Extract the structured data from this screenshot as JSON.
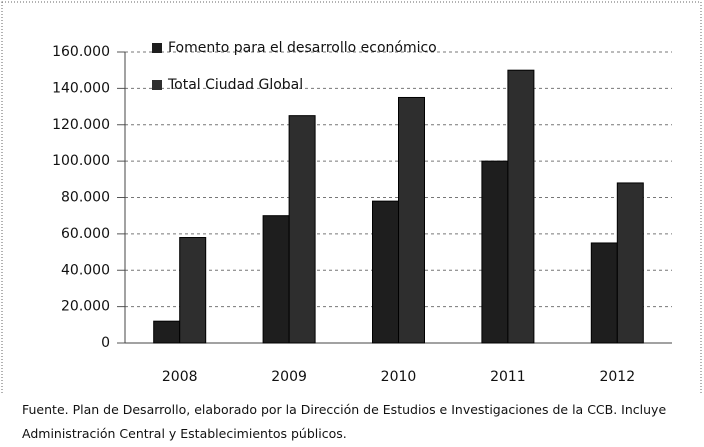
{
  "chart_data": {
    "type": "bar",
    "categories": [
      "2008",
      "2009",
      "2010",
      "2011",
      "2012"
    ],
    "series": [
      {
        "name": "Fomento para el desarrollo económico",
        "color": "#1e1e1e",
        "values": [
          12000,
          70000,
          78000,
          100000,
          55000
        ]
      },
      {
        "name": "Total Ciudad Global",
        "color": "#2e2e2e",
        "values": [
          58000,
          125000,
          135000,
          150000,
          88000
        ]
      }
    ],
    "ylim": [
      0,
      160000
    ],
    "yticks": [
      0,
      {
        "value": 20000,
        "label": "20.000"
      },
      {
        "value": 40000,
        "label": "40.000"
      },
      {
        "value": 60000,
        "label": "60.000"
      },
      {
        "value": 80000,
        "label": "80.000"
      },
      {
        "value": 100000,
        "label": "100.000"
      },
      {
        "value": 120000,
        "label": "120.000"
      },
      {
        "value": 140000,
        "label": "140.000"
      },
      {
        "value": 160000,
        "label": "160.000"
      }
    ],
    "grid": true,
    "legend": "top-left",
    "note": "Fuente. Plan de Desarrollo, elaborado por la Dirección de Estudios e Investigaciones de la CCB. Incluye Administración Central y Establecimientos públicos."
  }
}
